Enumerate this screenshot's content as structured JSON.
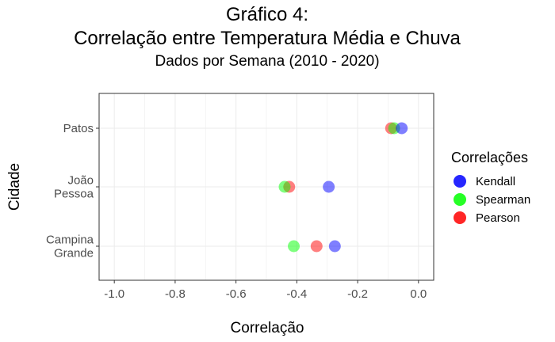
{
  "chart_data": {
    "type": "scatter",
    "title_lines": [
      "Gráfico 4:",
      "Correlação entre Temperatura Média e Chuva"
    ],
    "subtitle": "Dados por Semana (2010 - 2020)",
    "xlabel": "Correlação",
    "ylabel": "Cidade",
    "xlim": [
      -1.05,
      0.05
    ],
    "x_ticks": [
      -1.0,
      -0.8,
      -0.6,
      -0.4,
      -0.2,
      0.0
    ],
    "x_tick_labels": [
      "-1.0",
      "-0.8",
      "-0.6",
      "-0.4",
      "-0.2",
      "0.0"
    ],
    "categories": [
      {
        "lines": [
          "Campina",
          "Grande"
        ]
      },
      {
        "lines": [
          "João",
          "Pessoa"
        ]
      },
      {
        "lines": [
          "Patos"
        ]
      }
    ],
    "grid": true,
    "legend_title": "Correlações",
    "legend_position": "right",
    "series": [
      {
        "name": "Pearson",
        "color": "#ff0000",
        "values": [
          -0.335,
          -0.425,
          -0.09
        ]
      },
      {
        "name": "Spearman",
        "color": "#00ff00",
        "values": [
          -0.41,
          -0.44,
          -0.08
        ]
      },
      {
        "name": "Kendall",
        "color": "#0000ff",
        "values": [
          -0.275,
          -0.295,
          -0.055
        ]
      }
    ],
    "legend_order": [
      "Kendall",
      "Spearman",
      "Pearson"
    ]
  }
}
